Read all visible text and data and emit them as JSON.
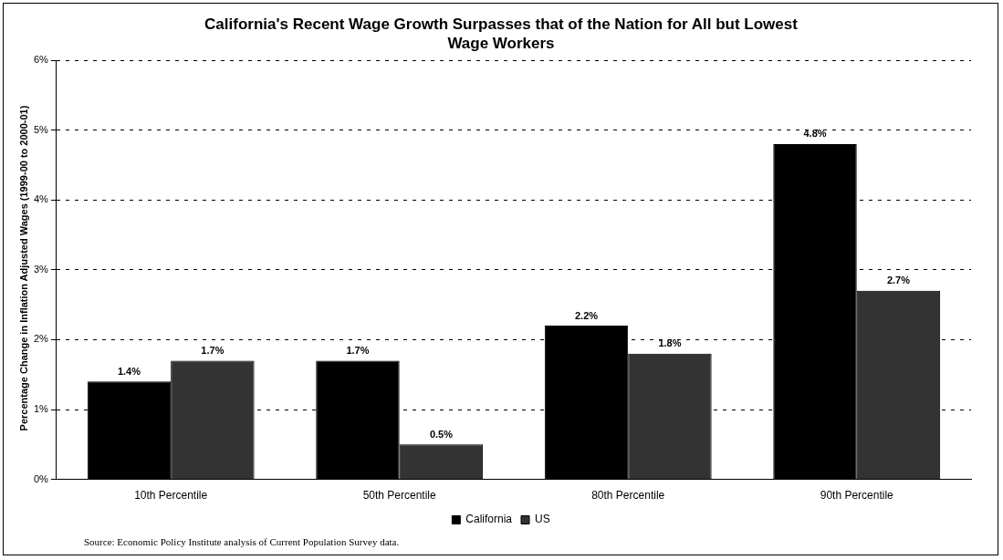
{
  "chart_data": {
    "type": "bar",
    "title": "California's Recent Wage Growth Surpasses that of the Nation for All but Lowest Wage Workers",
    "ylabel": "Percentage Change in Inflation Adjusted Wages (1999-00 to 2000-01)",
    "categories": [
      "10th Percentile",
      "50th Percentile",
      "80th Percentile",
      "90th Percentile"
    ],
    "series": [
      {
        "name": "California",
        "color": "#000000",
        "values": [
          1.4,
          1.7,
          2.2,
          4.8
        ],
        "value_labels": [
          "1.4%",
          "1.7%",
          "2.2%",
          "4.8%"
        ]
      },
      {
        "name": "US",
        "color": "#333333",
        "values": [
          1.7,
          0.5,
          1.8,
          2.7
        ],
        "value_labels": [
          "1.7%",
          "0.5%",
          "1.8%",
          "2.7%"
        ]
      }
    ],
    "ylim": [
      0,
      6
    ],
    "yticks": [
      {
        "value": 0,
        "label": "0%"
      },
      {
        "value": 1,
        "label": "1%"
      },
      {
        "value": 2,
        "label": "2%"
      },
      {
        "value": 3,
        "label": "3%"
      },
      {
        "value": 4,
        "label": "4%"
      },
      {
        "value": 5,
        "label": "5%"
      },
      {
        "value": 6,
        "label": "6%"
      }
    ],
    "grid": "y",
    "legend": "bottom",
    "annotations": [
      "Source: Economic Policy Institute analysis of Current Population Survey data."
    ]
  }
}
